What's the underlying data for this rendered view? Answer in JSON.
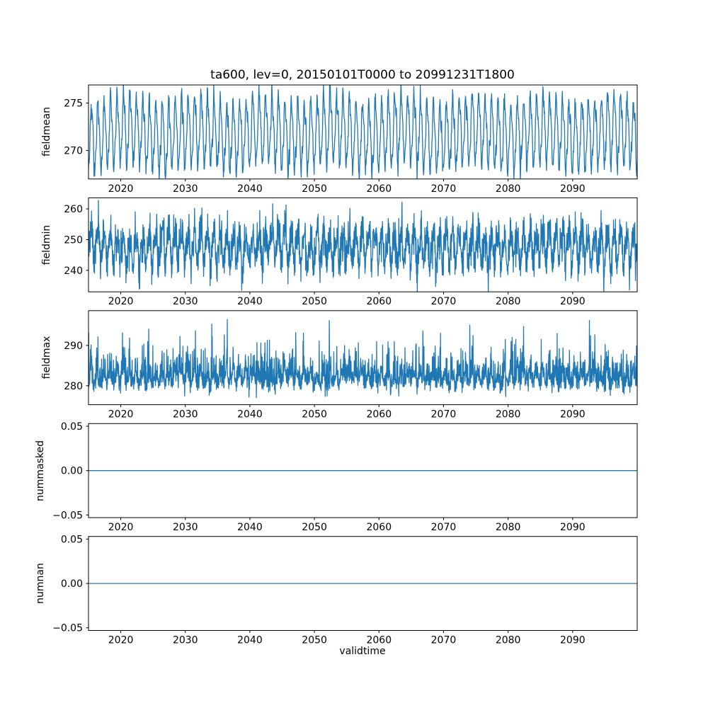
{
  "title": "ta600, lev=0, 20150101T0000 to 20991231T1800",
  "xlabel": "validtime",
  "line_color": "#1f77b4",
  "axis_color": "#000000",
  "background_color": "#ffffff",
  "xlim": [
    2015,
    2100
  ],
  "xticks": [
    2020,
    2030,
    2040,
    2050,
    2060,
    2070,
    2080,
    2090
  ],
  "xtick_labels": [
    "2020",
    "2030",
    "2040",
    "2050",
    "2060",
    "2070",
    "2080",
    "2090"
  ],
  "chart_data": [
    {
      "type": "line",
      "ylabel": "fieldmean",
      "ylim": [
        267.0,
        276.9
      ],
      "yticks": [
        270,
        275
      ],
      "ytick_labels": [
        "270",
        "275"
      ],
      "grid": false,
      "series": [
        {
          "name": "fieldmean",
          "color": "#1f77b4",
          "approx_range": [
            267.4,
            276.8
          ],
          "generator": {
            "kind": "seasonal",
            "seed": 42,
            "points_per_year": 20,
            "base": 271.8,
            "harmonics": [
              {
                "amp": 3.4,
                "freq": 1,
                "phase": -1.3
              },
              {
                "amp": 0.75,
                "freq": 3,
                "phase": 0.7
              },
              {
                "amp": 0.5,
                "freq": 0.093,
                "phase": 2.0
              }
            ],
            "noise_sigma": 0.5
          }
        }
      ]
    },
    {
      "type": "line",
      "ylabel": "fieldmin",
      "ylim": [
        233.0,
        263.6
      ],
      "yticks": [
        240,
        250,
        260
      ],
      "ytick_labels": [
        "240",
        "250",
        "260"
      ],
      "grid": false,
      "series": [
        {
          "name": "fieldmin",
          "color": "#1f77b4",
          "approx_range": [
            234.5,
            262.5
          ],
          "generator": {
            "kind": "seasonal",
            "seed": 7,
            "points_per_year": 30,
            "base": 247.8,
            "harmonics": [
              {
                "amp": 5.0,
                "freq": 1,
                "phase": -1.0
              },
              {
                "amp": 1.8,
                "freq": 2,
                "phase": 0.4
              },
              {
                "amp": 0.8,
                "freq": 0.07,
                "phase": 1.0
              }
            ],
            "noise_sigma": 3.1
          }
        }
      ]
    },
    {
      "type": "line",
      "ylabel": "fieldmax",
      "ylim": [
        275.3,
        298.6
      ],
      "yticks": [
        280,
        290
      ],
      "ytick_labels": [
        "280",
        "290"
      ],
      "grid": false,
      "series": [
        {
          "name": "fieldmax",
          "color": "#1f77b4",
          "approx_range": [
            277.3,
            297.6
          ],
          "generator": {
            "kind": "seasonal",
            "seed": 13,
            "points_per_year": 30,
            "base": 280.6,
            "harmonics": [
              {
                "amp": 1.3,
                "freq": 1,
                "phase": -0.8
              },
              {
                "amp": 0.5,
                "freq": 0.11,
                "phase": 0.3
              }
            ],
            "noise_sigma": 0.9,
            "spike": {
              "scale": 2.3,
              "cap": 16
            }
          }
        }
      ]
    },
    {
      "type": "line",
      "ylabel": "nummasked",
      "ylim": [
        -0.053,
        0.053
      ],
      "yticks": [
        -0.05,
        0.0,
        0.05
      ],
      "ytick_labels": [
        "−0.05",
        "0.00",
        "0.05"
      ],
      "grid": false,
      "series": [
        {
          "name": "nummasked",
          "color": "#1f77b4",
          "approx_range": [
            0,
            0
          ],
          "generator": {
            "kind": "constant",
            "seed": 1,
            "points_per_year": 1,
            "value": 0
          }
        }
      ]
    },
    {
      "type": "line",
      "ylabel": "numnan",
      "ylim": [
        -0.053,
        0.053
      ],
      "yticks": [
        -0.05,
        0.0,
        0.05
      ],
      "ytick_labels": [
        "−0.05",
        "0.00",
        "0.05"
      ],
      "grid": false,
      "series": [
        {
          "name": "numnan",
          "color": "#1f77b4",
          "approx_range": [
            0,
            0
          ],
          "generator": {
            "kind": "constant",
            "seed": 2,
            "points_per_year": 1,
            "value": 0
          }
        }
      ]
    }
  ]
}
